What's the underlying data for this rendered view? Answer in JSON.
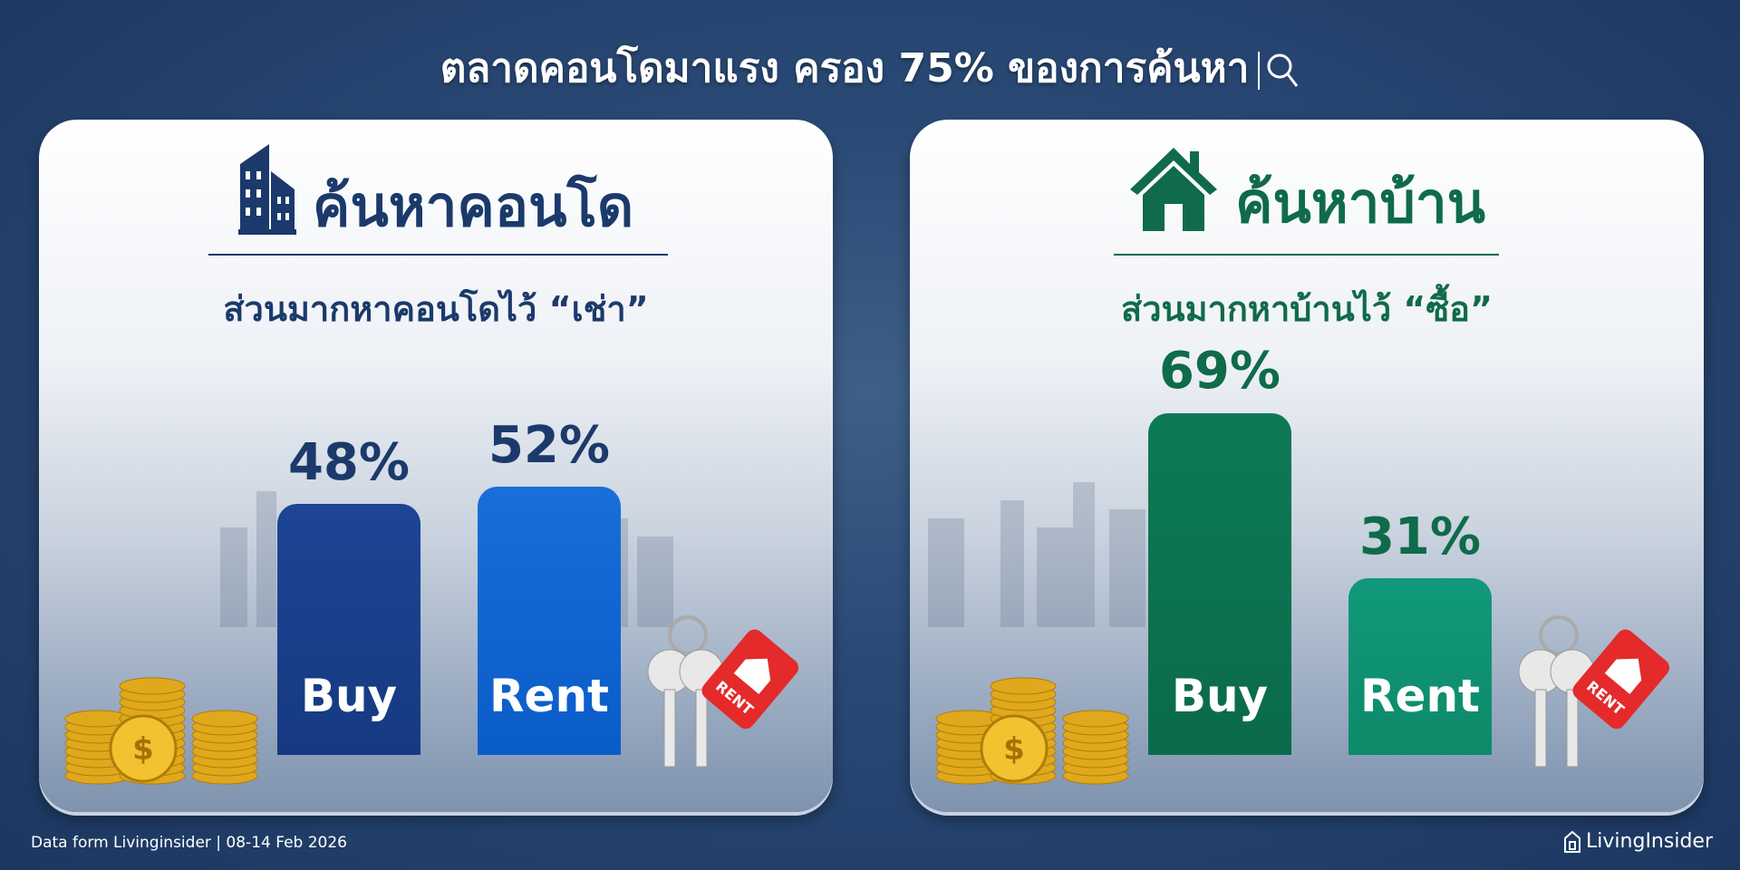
{
  "title": "ตลาดคอนโดมาแรง ครอง 75% ของการค้นหา",
  "colors": {
    "condo": "#1b3a6b",
    "condo_buy": "#1d4594",
    "condo_rent": "#0a5cc9",
    "house": "#0f6b4a",
    "house_buy": "#0b6a4b",
    "house_rent": "#0d8a6a"
  },
  "chart_data": [
    {
      "type": "bar",
      "title": "ค้นหาคอนโด",
      "subtitle": "ส่วนมากหาคอนโดไว้ “เช่า”",
      "categories": [
        "Buy",
        "Rent"
      ],
      "values": [
        48,
        52
      ],
      "value_labels": [
        "48%",
        "52%"
      ],
      "icon": "building-icon"
    },
    {
      "type": "bar",
      "title": "ค้นหาบ้าน",
      "subtitle": "ส่วนมากหาบ้านไว้ “ซื้อ”",
      "categories": [
        "Buy",
        "Rent"
      ],
      "values": [
        69,
        31
      ],
      "value_labels": [
        "69%",
        "31%"
      ],
      "icon": "house-icon"
    }
  ],
  "decor": {
    "tag_text": "RENT"
  },
  "footer": {
    "source": "Data form Livinginsider | 08-14 Feb 2026",
    "logo": "LivingInsider"
  }
}
